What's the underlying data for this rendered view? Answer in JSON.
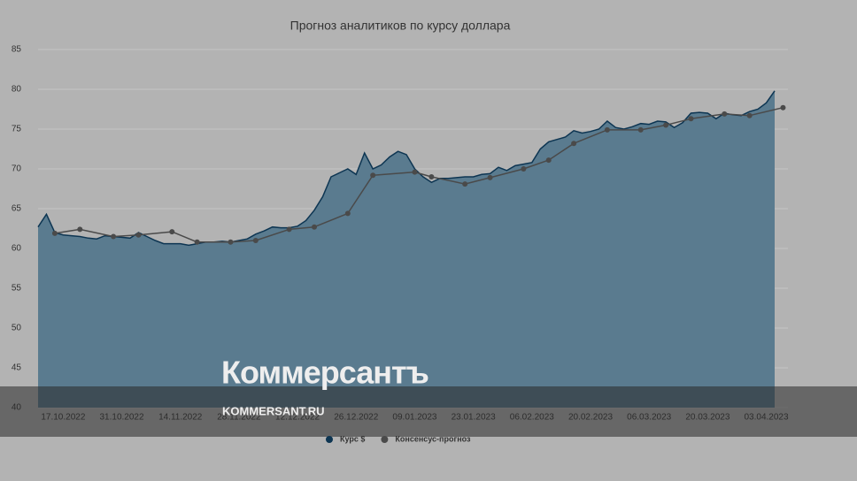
{
  "chart_data": {
    "type": "area",
    "title": "Прогноз аналитиков по курсу доллара",
    "categories": [
      null,
      null,
      null,
      "17.10.2022",
      null,
      null,
      null,
      null,
      null,
      null,
      "31.10.2022",
      null,
      null,
      null,
      null,
      null,
      null,
      "14.11.2022",
      null,
      null,
      null,
      null,
      null,
      null,
      "28.11.2022",
      null,
      null,
      null,
      null,
      null,
      null,
      "12.12.2022",
      null,
      null,
      null,
      null,
      null,
      null,
      "26.12.2022",
      null,
      null,
      null,
      null,
      null,
      null,
      "09.01.2023",
      null,
      null,
      null,
      null,
      null,
      null,
      "23.01.2023",
      null,
      null,
      null,
      null,
      null,
      null,
      "06.02.2023",
      null,
      null,
      null,
      null,
      null,
      null,
      "20.02.2023",
      null,
      null,
      null,
      null,
      null,
      null,
      "06.03.2023",
      null,
      null,
      null,
      null,
      null,
      null,
      "20.03.2023",
      null,
      null,
      null,
      null,
      null,
      null,
      "03.04.2023",
      null,
      null
    ],
    "series": [
      {
        "name": "Курс $",
        "color": "#0d3552",
        "fill": "#5a7b8f",
        "values": [
          62.7,
          64.3,
          62.0,
          61.7,
          61.6,
          61.5,
          61.3,
          61.2,
          61.6,
          61.5,
          61.4,
          61.3,
          62.0,
          61.5,
          61.0,
          60.6,
          60.6,
          60.6,
          60.4,
          60.6,
          60.8,
          60.8,
          60.9,
          60.8,
          61.0,
          61.2,
          61.8,
          62.2,
          62.7,
          62.6,
          62.6,
          62.8,
          63.5,
          64.8,
          66.5,
          69.0,
          69.5,
          70.0,
          69.3,
          72.0,
          70.0,
          70.5,
          71.5,
          72.2,
          71.8,
          70.0,
          69.0,
          68.3,
          68.8,
          68.8,
          68.9,
          69.0,
          69.0,
          69.3,
          69.4,
          70.2,
          69.8,
          70.4,
          70.6,
          70.8,
          72.5,
          73.4,
          73.7,
          74.0,
          74.8,
          74.5,
          74.7,
          75.0,
          76.0,
          75.2,
          75.0,
          75.3,
          75.7,
          75.6,
          76.0,
          75.9,
          75.2,
          75.8,
          77.0,
          77.1,
          77.0,
          76.3,
          77.0,
          76.8,
          76.7,
          77.2,
          77.5,
          78.3,
          79.8,
          null
        ]
      },
      {
        "name": "Консенсус-прогноз",
        "color": "#4a4a4a",
        "values": [
          null,
          null,
          61.9,
          null,
          null,
          62.4,
          null,
          null,
          null,
          61.5,
          null,
          null,
          61.7,
          null,
          null,
          null,
          62.1,
          null,
          null,
          60.8,
          null,
          null,
          null,
          60.8,
          null,
          null,
          61.0,
          null,
          null,
          null,
          62.4,
          null,
          null,
          62.7,
          null,
          null,
          null,
          64.4,
          null,
          null,
          69.2,
          null,
          null,
          null,
          null,
          69.6,
          null,
          69.0,
          null,
          null,
          null,
          68.1,
          null,
          null,
          68.9,
          null,
          null,
          null,
          70.0,
          null,
          null,
          71.1,
          null,
          null,
          73.2,
          null,
          null,
          null,
          74.9,
          null,
          null,
          null,
          74.9,
          null,
          null,
          75.5,
          null,
          null,
          76.3,
          null,
          null,
          null,
          76.9,
          null,
          null,
          76.7,
          null,
          null,
          null,
          77.7
        ]
      }
    ],
    "ylim": [
      40,
      85
    ],
    "yticks": [
      40,
      45,
      50,
      55,
      60,
      65,
      70,
      75,
      80,
      85
    ],
    "grid": true,
    "legend": "bottom"
  },
  "watermark": {
    "brand": "Коммерсантъ",
    "site": "KOMMERSANT.RU"
  }
}
